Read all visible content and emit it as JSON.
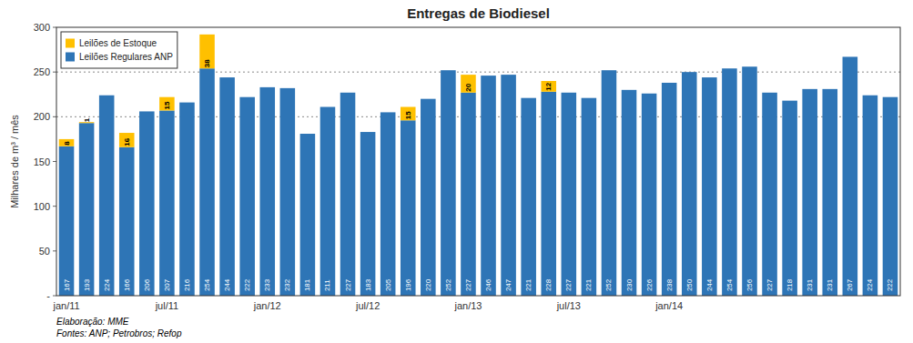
{
  "chart_data": {
    "type": "bar",
    "stacked": true,
    "title": "Entregas de Biodiesel",
    "ylabel": "Milhares de m³ / mês",
    "annotations": [
      "Elaboração:  MME",
      "Fontes: ANP; Petrobros; Refop"
    ],
    "categories": [
      "jan/11",
      null,
      null,
      null,
      null,
      "jul/11",
      null,
      null,
      null,
      null,
      "jan/12",
      null,
      null,
      null,
      null,
      "jul/12",
      null,
      null,
      null,
      null,
      "jan/13",
      null,
      null,
      null,
      null,
      "jul/13",
      null,
      null,
      null,
      null,
      "jan/14",
      null,
      null,
      null,
      null,
      null,
      null,
      null,
      null,
      null,
      null,
      null
    ],
    "series": [
      {
        "name": "Leilões Regulares ANP",
        "color": "#2E75B6",
        "data_labels": true,
        "values": [
          167,
          193,
          224,
          166,
          206,
          207,
          216,
          254,
          244,
          222,
          233,
          232,
          181,
          211,
          227,
          183,
          205,
          196,
          220,
          252,
          227,
          246,
          247,
          221,
          228,
          227,
          221,
          252,
          230,
          226,
          238,
          250,
          244,
          254,
          256,
          227,
          218,
          231,
          231,
          267,
          224,
          222
        ]
      },
      {
        "name": "Leilões de Estoque",
        "color": "#FFC000",
        "data_labels": true,
        "values": [
          8,
          1,
          0,
          16,
          0,
          15,
          0,
          38,
          0,
          0,
          0,
          0,
          0,
          0,
          0,
          0,
          0,
          15,
          0,
          0,
          20,
          0,
          0,
          0,
          12,
          0,
          0,
          0,
          0,
          0,
          0,
          0,
          0,
          0,
          0,
          0,
          0,
          0,
          0,
          0,
          0,
          0
        ]
      }
    ],
    "ylim": [
      0,
      300
    ],
    "yticks": [
      {
        "value": 0,
        "label": "-"
      },
      50,
      100,
      150,
      200,
      250,
      300
    ],
    "hlines": [
      200,
      250
    ],
    "grid": false,
    "legend": "upper left"
  }
}
